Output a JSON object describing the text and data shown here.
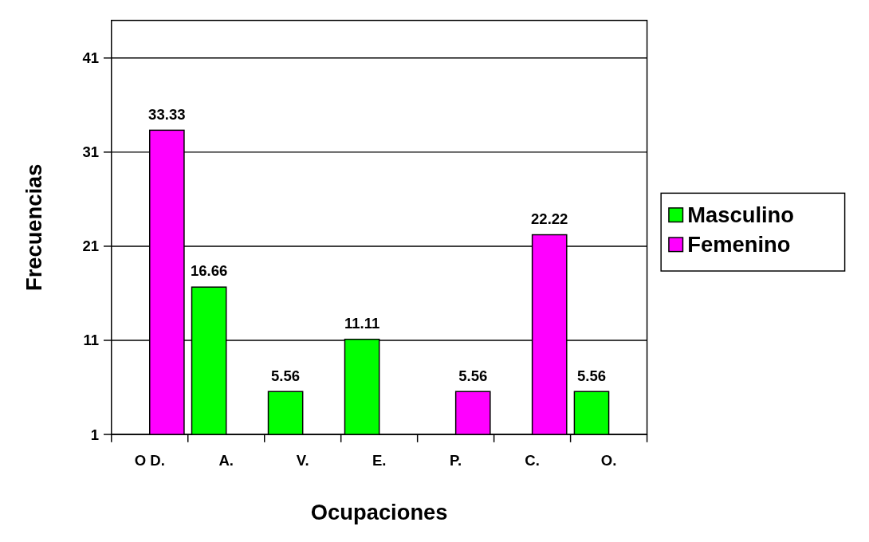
{
  "chart_data": {
    "type": "bar",
    "xlabel": "Ocupaciones",
    "ylabel": "Frecuencias",
    "categories": [
      "O D.",
      "A.",
      "V.",
      "E.",
      "P.",
      "C.",
      "O."
    ],
    "series": [
      {
        "name": "Masculino",
        "color": "#00ff00",
        "values": [
          null,
          16.66,
          5.56,
          11.11,
          null,
          null,
          5.56
        ]
      },
      {
        "name": "Femenino",
        "color": "#ff00ff",
        "values": [
          33.33,
          null,
          null,
          null,
          5.56,
          22.22,
          null
        ]
      }
    ],
    "ylim": [
      1,
      45
    ],
    "yticks": [
      1,
      11,
      21,
      31,
      41
    ],
    "grid": "y",
    "legend": "right",
    "data_labels": true
  }
}
